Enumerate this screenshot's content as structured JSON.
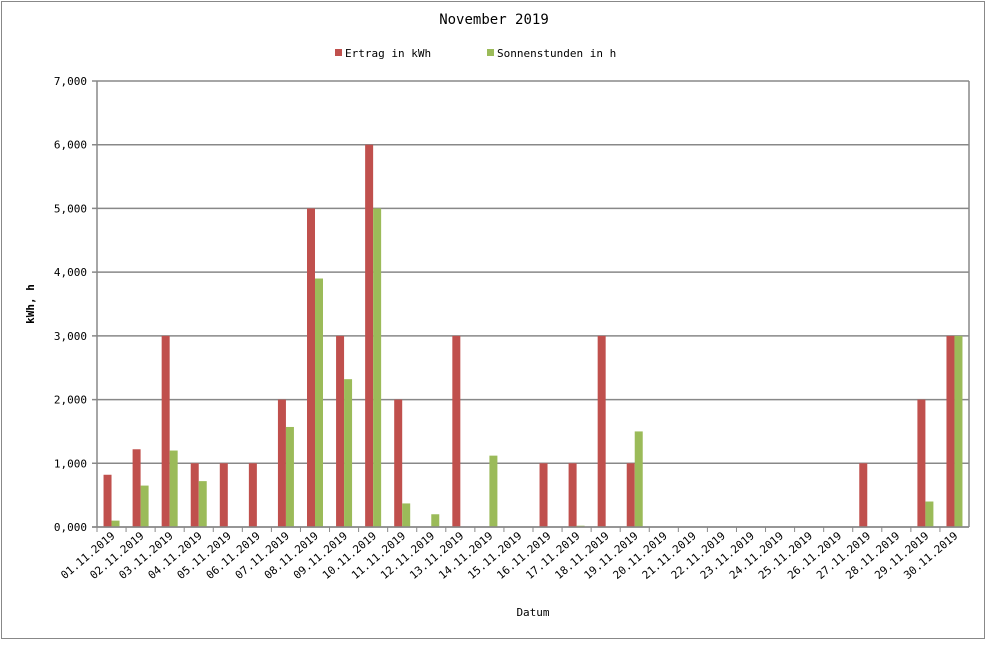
{
  "chart_data": {
    "type": "bar",
    "title": "November 2019",
    "x_label": "Datum",
    "y_label": "kWh, h",
    "categories": [
      "01.11.2019",
      "02.11.2019",
      "03.11.2019",
      "04.11.2019",
      "05.11.2019",
      "06.11.2019",
      "07.11.2019",
      "08.11.2019",
      "09.11.2019",
      "10.11.2019",
      "11.11.2019",
      "12.11.2019",
      "13.11.2019",
      "14.11.2019",
      "15.11.2019",
      "16.11.2019",
      "17.11.2019",
      "18.11.2019",
      "19.11.2019",
      "20.11.2019",
      "21.11.2019",
      "22.11.2019",
      "23.11.2019",
      "24.11.2019",
      "25.11.2019",
      "26.11.2019",
      "27.11.2019",
      "28.11.2019",
      "29.11.2019",
      "30.11.2019"
    ],
    "series": [
      {
        "name": "Ertrag in kWh",
        "color": "#c0504d",
        "values": [
          0.82,
          1.22,
          3,
          1,
          1,
          1,
          2,
          5,
          3,
          6,
          2,
          0,
          3,
          0,
          0,
          1,
          1,
          3,
          1,
          0,
          0,
          0,
          0,
          0,
          0,
          0,
          1,
          0,
          2,
          3
        ]
      },
      {
        "name": "Sonnenstunden in h",
        "color": "#9bbb59",
        "values": [
          0.1,
          0.65,
          1.2,
          0.72,
          0,
          0,
          1.57,
          3.9,
          2.32,
          5,
          0.37,
          0.2,
          0,
          1.12,
          0,
          0,
          0.02,
          0,
          1.5,
          0,
          0,
          0,
          0,
          0,
          0,
          0,
          0,
          0,
          0.4,
          3
        ]
      }
    ],
    "ylim": [
      0,
      7
    ],
    "yticks": [
      {
        "value": 0,
        "label": "0,000"
      },
      {
        "value": 1,
        "label": "1,000"
      },
      {
        "value": 2,
        "label": "2,000"
      },
      {
        "value": 3,
        "label": "3,000"
      },
      {
        "value": 4,
        "label": "4,000"
      },
      {
        "value": 5,
        "label": "5,000"
      },
      {
        "value": 6,
        "label": "6,000"
      },
      {
        "value": 7,
        "label": "7,000"
      }
    ],
    "grid": true,
    "legend": "top"
  }
}
